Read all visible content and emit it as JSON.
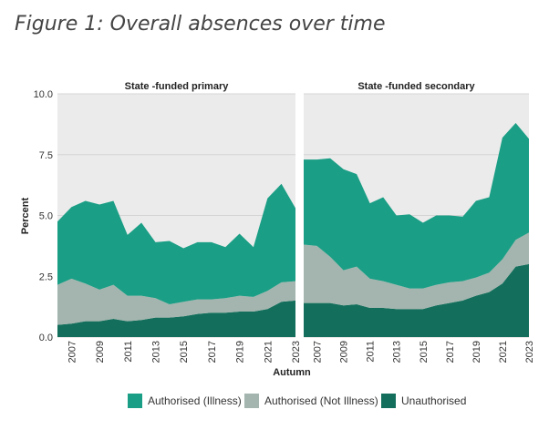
{
  "title": "Figure 1: Overall absences over time",
  "colors": {
    "authorised_illness": "#1a9e85",
    "authorised_not_illness": "#a3b5ae",
    "unauthorised": "#136f5c"
  },
  "chart_data": [
    {
      "type": "area",
      "stacked": true,
      "title": "State -funded primary",
      "x": [
        2006,
        2007,
        2008,
        2009,
        2010,
        2011,
        2012,
        2013,
        2014,
        2015,
        2016,
        2017,
        2018,
        2019,
        2020,
        2021,
        2022,
        2023
      ],
      "series": [
        {
          "name": "Unauthorised",
          "values": [
            0.5,
            0.55,
            0.65,
            0.65,
            0.75,
            0.65,
            0.7,
            0.8,
            0.8,
            0.85,
            0.95,
            1.0,
            1.0,
            1.05,
            1.05,
            1.15,
            1.45,
            1.5
          ]
        },
        {
          "name": "Authorised (Not Illness)",
          "values": [
            1.65,
            1.85,
            1.55,
            1.3,
            1.4,
            1.05,
            1.0,
            0.8,
            0.55,
            0.6,
            0.6,
            0.55,
            0.6,
            0.65,
            0.6,
            0.75,
            0.8,
            0.8
          ]
        },
        {
          "name": "Authorised (Illness)",
          "values": [
            2.6,
            2.95,
            3.4,
            3.5,
            3.45,
            2.5,
            3.0,
            2.3,
            2.6,
            2.2,
            2.35,
            2.35,
            2.1,
            2.55,
            2.05,
            3.8,
            4.05,
            3.0
          ]
        }
      ],
      "xlabel": "Autumn",
      "ylabel": "Percent",
      "ylim": [
        0,
        10
      ],
      "yticks": [
        0.0,
        2.5,
        5.0,
        7.5,
        10.0
      ],
      "xticks": [
        2007,
        2009,
        2011,
        2013,
        2015,
        2017,
        2019,
        2021,
        2023
      ],
      "grid": true,
      "legend": "bottom"
    },
    {
      "type": "area",
      "stacked": true,
      "title": "State -funded secondary",
      "x": [
        2006,
        2007,
        2008,
        2009,
        2010,
        2011,
        2012,
        2013,
        2014,
        2015,
        2016,
        2017,
        2018,
        2019,
        2020,
        2021,
        2022,
        2023
      ],
      "series": [
        {
          "name": "Unauthorised",
          "values": [
            1.4,
            1.4,
            1.4,
            1.3,
            1.35,
            1.2,
            1.2,
            1.15,
            1.15,
            1.15,
            1.3,
            1.4,
            1.5,
            1.7,
            1.85,
            2.2,
            2.9,
            3.0
          ]
        },
        {
          "name": "Authorised (Not Illness)",
          "values": [
            2.4,
            2.35,
            1.9,
            1.45,
            1.55,
            1.2,
            1.1,
            1.0,
            0.85,
            0.85,
            0.85,
            0.85,
            0.8,
            0.75,
            0.8,
            1.0,
            1.1,
            1.3
          ]
        },
        {
          "name": "Authorised (Illness)",
          "values": [
            3.5,
            3.55,
            4.05,
            4.15,
            3.8,
            3.1,
            3.45,
            2.85,
            3.05,
            2.7,
            2.85,
            2.75,
            2.65,
            3.15,
            3.1,
            5.0,
            4.8,
            3.85
          ]
        }
      ],
      "xlabel": "Autumn",
      "ylim": [
        0,
        10
      ],
      "xticks": [
        2007,
        2009,
        2011,
        2013,
        2015,
        2017,
        2019,
        2021,
        2023
      ],
      "grid": true,
      "legend": "bottom"
    }
  ],
  "legend": [
    {
      "label": "Authorised (Illness)",
      "color": "#1a9e85"
    },
    {
      "label": "Authorised (Not Illness)",
      "color": "#a3b5ae"
    },
    {
      "label": "Unauthorised",
      "color": "#136f5c"
    }
  ]
}
